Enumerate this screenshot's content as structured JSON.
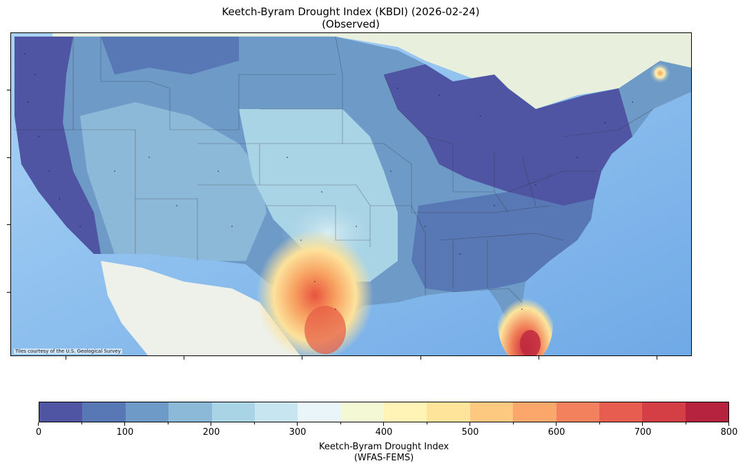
{
  "title": {
    "line1": "Keetch-Byram Drought Index (KBDI) (2026-02-24)",
    "line2": "(Observed)"
  },
  "map": {
    "attribution": "Tiles courtesy of the U.S. Geological Survey",
    "basemap_ocean_color": "#8fc3f0",
    "basemap_land_color": "#eef2e6",
    "region": "Continental United States"
  },
  "colorbar": {
    "label_line1": "Keetch-Byram Drought Index",
    "label_line2": "(WFAS-FEMS)",
    "min": 0,
    "max": 800,
    "step": 50,
    "tick_labels": [
      "0",
      "100",
      "200",
      "300",
      "400",
      "500",
      "600",
      "700",
      "800"
    ],
    "colors": [
      "#4f55a3",
      "#5877b5",
      "#6e9ac8",
      "#8cb9d8",
      "#a8d4e6",
      "#c7e5f0",
      "#e9f5f8",
      "#f4f8d4",
      "#fff3b5",
      "#fee39a",
      "#fdc980",
      "#fba76b",
      "#f4815d",
      "#e75d4f",
      "#d43f45",
      "#b5233f"
    ]
  }
}
